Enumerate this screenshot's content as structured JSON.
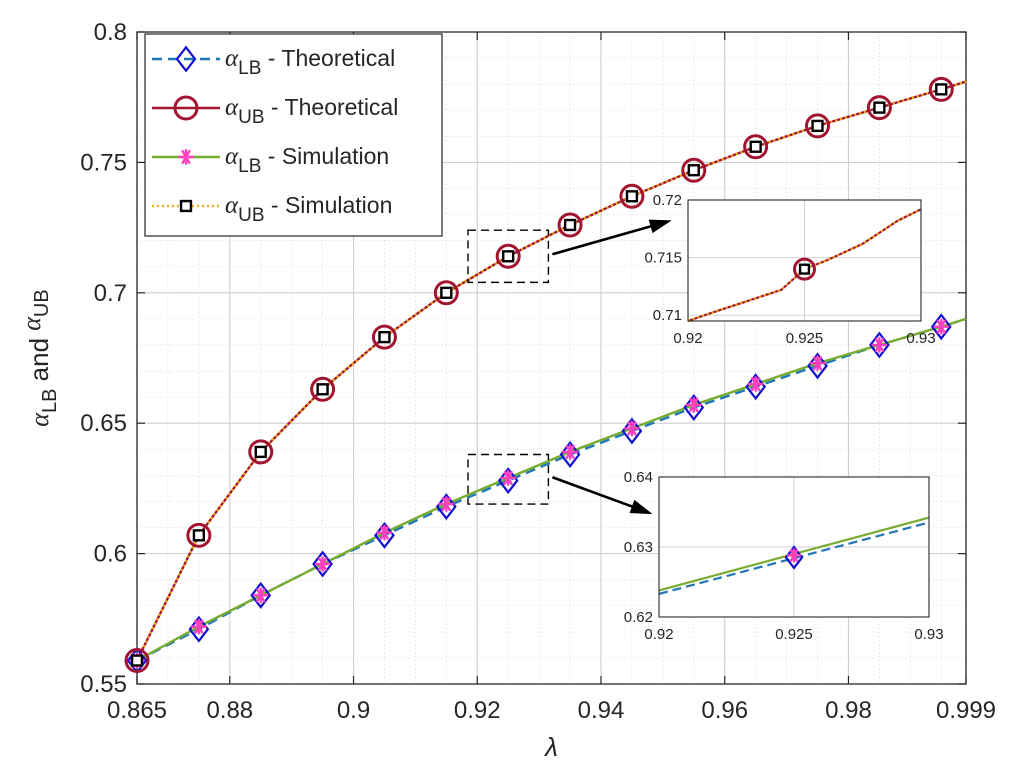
{
  "chart_data": {
    "type": "line",
    "xlabel": "λ",
    "ylabel_parts": [
      "α",
      "LB",
      " and ",
      "α",
      "UB"
    ],
    "xlim": [
      0.865,
      0.999
    ],
    "ylim": [
      0.55,
      0.8
    ],
    "xticks": [
      0.865,
      0.88,
      0.9,
      0.92,
      0.94,
      0.96,
      0.98,
      0.999
    ],
    "xtick_labels": [
      "0.865",
      "0.88",
      "0.9",
      "0.92",
      "0.94",
      "0.96",
      "0.98",
      "0.999"
    ],
    "yticks": [
      0.55,
      0.6,
      0.65,
      0.7,
      0.75,
      0.8
    ],
    "ytick_labels": [
      "0.55",
      "0.6",
      "0.65",
      "0.7",
      "0.75",
      "0.8"
    ],
    "grid": true,
    "minor_grid": true,
    "legend_position": "top-left",
    "series": [
      {
        "name_parts": [
          "α",
          "LB",
          " - Theoretical"
        ],
        "color": "#1f77b4",
        "marker_color": "#1010d0",
        "line": "dashed",
        "marker": "diamond",
        "x": [
          0.865,
          0.875,
          0.885,
          0.895,
          0.905,
          0.915,
          0.925,
          0.935,
          0.945,
          0.955,
          0.965,
          0.975,
          0.985,
          0.995,
          0.999
        ],
        "y": [
          0.559,
          0.571,
          0.584,
          0.596,
          0.607,
          0.618,
          0.628,
          0.638,
          0.647,
          0.656,
          0.664,
          0.672,
          0.68,
          0.687,
          0.69
        ]
      },
      {
        "name_parts": [
          "α",
          "UB",
          " - Theoretical"
        ],
        "color": "#a2142f",
        "marker_color": "#a2142f",
        "line": "solid",
        "marker": "circle",
        "x": [
          0.865,
          0.875,
          0.885,
          0.895,
          0.905,
          0.915,
          0.925,
          0.935,
          0.945,
          0.955,
          0.965,
          0.975,
          0.985,
          0.995,
          0.999
        ],
        "y": [
          0.559,
          0.607,
          0.639,
          0.663,
          0.683,
          0.7,
          0.714,
          0.726,
          0.737,
          0.747,
          0.756,
          0.764,
          0.771,
          0.778,
          0.781
        ]
      },
      {
        "name_parts": [
          "α",
          "LB",
          " - Simulation"
        ],
        "color": "#77ac30",
        "marker_color": "#ff3fbf",
        "line": "solid",
        "marker": "asterisk",
        "x": [
          0.865,
          0.875,
          0.885,
          0.895,
          0.905,
          0.915,
          0.925,
          0.935,
          0.945,
          0.955,
          0.965,
          0.975,
          0.985,
          0.995,
          0.999
        ],
        "y": [
          0.559,
          0.572,
          0.584,
          0.596,
          0.608,
          0.619,
          0.629,
          0.639,
          0.648,
          0.657,
          0.665,
          0.673,
          0.68,
          0.687,
          0.69
        ]
      },
      {
        "name_parts": [
          "α",
          "UB",
          " - Simulation"
        ],
        "color": "#edb120",
        "marker_color": "#000000",
        "line": "dotted",
        "marker": "square",
        "x": [
          0.865,
          0.875,
          0.885,
          0.895,
          0.905,
          0.915,
          0.925,
          0.935,
          0.945,
          0.955,
          0.965,
          0.975,
          0.985,
          0.995,
          0.999
        ],
        "y": [
          0.559,
          0.607,
          0.639,
          0.663,
          0.683,
          0.7,
          0.714,
          0.726,
          0.737,
          0.747,
          0.756,
          0.764,
          0.771,
          0.778,
          0.781
        ]
      }
    ],
    "insets": [
      {
        "xlim": [
          0.92,
          0.93
        ],
        "ylim": [
          0.7095,
          0.72
        ],
        "xticks": [
          0.92,
          0.925,
          0.93
        ],
        "xtick_labels": [
          "0.92",
          "0.925",
          "0.93"
        ],
        "yticks": [
          0.71,
          0.715,
          0.72
        ],
        "ytick_labels": [
          "0.71",
          "0.715",
          "0.72"
        ],
        "zoom_box": {
          "x": [
            0.9185,
            0.9315
          ],
          "y": [
            0.704,
            0.724
          ]
        },
        "lines": [
          {
            "color": "#a2142f",
            "dash": "",
            "width": 2.2,
            "x": [
              0.92,
              0.921,
              0.9225,
              0.924,
              0.925,
              0.926,
              0.9275,
              0.929,
              0.93
            ],
            "y": [
              0.7095,
              0.7102,
              0.7112,
              0.7122,
              0.714,
              0.7148,
              0.7162,
              0.7182,
              0.7192
            ]
          },
          {
            "color": "#edb120",
            "dash": "2,3",
            "width": 2.2,
            "x": [
              0.92,
              0.921,
              0.9225,
              0.924,
              0.925,
              0.926,
              0.9275,
              0.929,
              0.93
            ],
            "y": [
              0.7095,
              0.7102,
              0.7112,
              0.7122,
              0.714,
              0.7148,
              0.7162,
              0.7182,
              0.7192
            ]
          }
        ],
        "markers": [
          {
            "type": "circle",
            "x": 0.925,
            "y": 0.714
          },
          {
            "type": "square",
            "x": 0.925,
            "y": 0.714
          }
        ]
      },
      {
        "xlim": [
          0.92,
          0.93
        ],
        "ylim": [
          0.62,
          0.64
        ],
        "xticks": [
          0.92,
          0.925,
          0.93
        ],
        "xtick_labels": [
          "0.92",
          "0.925",
          "0.93"
        ],
        "yticks": [
          0.62,
          0.63,
          0.64
        ],
        "ytick_labels": [
          "0.62",
          "0.63",
          "0.64"
        ],
        "zoom_box": {
          "x": [
            0.9185,
            0.9315
          ],
          "y": [
            0.619,
            0.638
          ]
        },
        "lines": [
          {
            "color": "#1f77b4",
            "dash": "9,5",
            "width": 2.2,
            "x": [
              0.92,
              0.93
            ],
            "y": [
              0.6233,
              0.6335
            ]
          },
          {
            "color": "#77ac30",
            "dash": "",
            "width": 2.2,
            "x": [
              0.92,
              0.93
            ],
            "y": [
              0.6238,
              0.6342
            ]
          }
        ],
        "markers": [
          {
            "type": "diamond",
            "x": 0.925,
            "y": 0.6285
          },
          {
            "type": "asterisk",
            "x": 0.925,
            "y": 0.6288
          }
        ]
      }
    ]
  }
}
